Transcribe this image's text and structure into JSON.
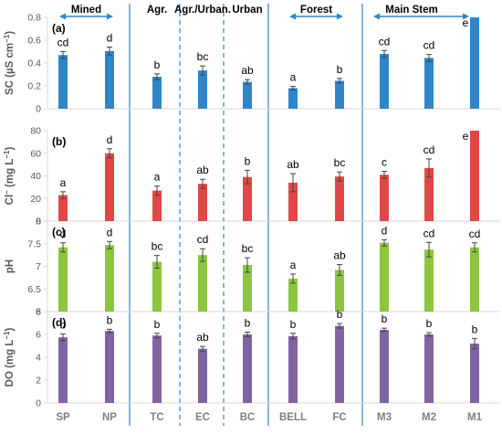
{
  "chart_data": {
    "type": "bar",
    "categories": [
      "SP",
      "NP",
      "TC",
      "EC",
      "BC",
      "BELL",
      "FC",
      "M3",
      "M2",
      "M1"
    ],
    "groups": [
      {
        "label": "Mined",
        "arrow": true,
        "cats": [
          "SP",
          "NP"
        ]
      },
      {
        "label": "Agr.",
        "arrow": false,
        "cats": [
          "TC"
        ]
      },
      {
        "label": "Agr./Urban.",
        "arrow": false,
        "cats": [
          "EC"
        ]
      },
      {
        "label": "Urban",
        "arrow": false,
        "cats": [
          "BC"
        ]
      },
      {
        "label": "Forest",
        "arrow": true,
        "cats": [
          "BELL",
          "FC"
        ]
      },
      {
        "label": "Main Stem",
        "arrow": true,
        "cats": [
          "M3",
          "M2",
          "M1"
        ]
      }
    ],
    "separators": [
      {
        "after": "NP",
        "style": "solid"
      },
      {
        "after": "TC",
        "style": "dashed"
      },
      {
        "after": "EC",
        "style": "dashed"
      },
      {
        "after": "BC",
        "style": "solid"
      },
      {
        "after": "FC",
        "style": "solid"
      }
    ],
    "panels": [
      {
        "label": "(a)",
        "ylabel_main": "SC (µS cm",
        "ylabel_sup": "−1",
        "ylabel_end": ")",
        "ylim": [
          0,
          0.8
        ],
        "yticks": [
          "0",
          "0.2",
          "0.4",
          "0.6",
          "0.8"
        ],
        "color": "#2e86c9",
        "values": [
          0.47,
          0.505,
          0.28,
          0.335,
          0.235,
          0.18,
          0.245,
          0.48,
          0.445,
          0.8
        ],
        "errors": [
          0.03,
          0.035,
          0.025,
          0.04,
          0.02,
          0.015,
          0.02,
          0.03,
          0.03,
          0.0
        ],
        "letters": [
          "cd",
          "d",
          "b",
          "bc",
          "ab",
          "a",
          "b",
          "cd",
          "cd",
          "e"
        ]
      },
      {
        "label": "(b)",
        "ylabel_main": "Cl",
        "ylabel_sup": "−",
        "ylabel_end": " (mg L",
        "ylabel_sup2": "−1",
        "ylabel_end2": ")",
        "ylim": [
          0,
          80
        ],
        "yticks": [
          "0",
          "20",
          "40",
          "60",
          "80"
        ],
        "color": "#e04848",
        "values": [
          23,
          60,
          27,
          33,
          39,
          34,
          39.5,
          41,
          47,
          80
        ],
        "errors": [
          3,
          4,
          4,
          4,
          6,
          8,
          4,
          3,
          8,
          0
        ],
        "letters": [
          "a",
          "d",
          "a",
          "ab",
          "b",
          "ab",
          "bc",
          "c",
          "cd",
          "e"
        ]
      },
      {
        "label": "(c)",
        "ylabel_main": "pH",
        "ylim": [
          6,
          8
        ],
        "yticks": [
          "6",
          "6.5",
          "7",
          "7.5",
          "8"
        ],
        "color": "#8cc63f",
        "values": [
          7.42,
          7.47,
          7.1,
          7.25,
          7.03,
          6.73,
          6.92,
          7.52,
          7.37,
          7.42
        ],
        "errors": [
          0.1,
          0.08,
          0.14,
          0.14,
          0.16,
          0.1,
          0.12,
          0.07,
          0.16,
          0.1
        ],
        "letters": [
          "d",
          "d",
          "bc",
          "cd",
          "bc",
          "a",
          "ab",
          "d",
          "cd",
          "cd"
        ]
      },
      {
        "label": "(d)",
        "ylabel_main": "DO (mg L",
        "ylabel_sup": "−1",
        "ylabel_end": ")",
        "ylim": [
          0,
          8
        ],
        "yticks": [
          "0",
          "2",
          "4",
          "6",
          "8"
        ],
        "color": "#8064a2",
        "values": [
          5.75,
          6.3,
          5.9,
          4.75,
          6.0,
          5.85,
          6.75,
          6.4,
          6.0,
          5.2
        ],
        "errors": [
          0.3,
          0.15,
          0.2,
          0.2,
          0.2,
          0.25,
          0.2,
          0.15,
          0.15,
          0.45
        ],
        "letters": [
          "b",
          "b",
          "b",
          "ab",
          "b",
          "b",
          "b",
          "b",
          "b",
          "b"
        ]
      }
    ]
  }
}
